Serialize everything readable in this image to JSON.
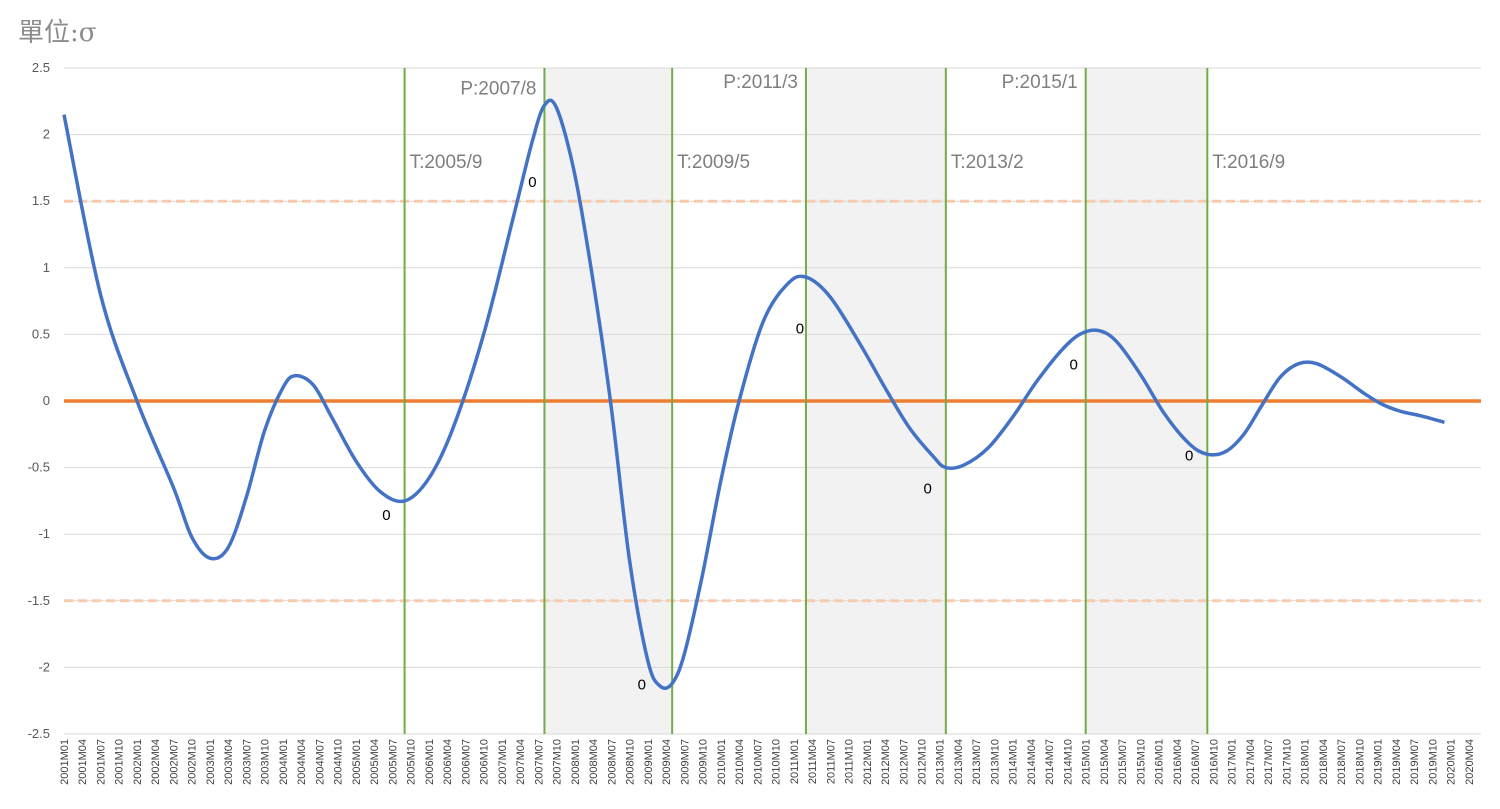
{
  "unit_label": "單位:σ",
  "chart_data": {
    "type": "line",
    "title": "",
    "ylim": [
      -2.5,
      2.5
    ],
    "yticks": [
      "2.5",
      "2",
      "1.5",
      "1",
      "0.5",
      "0",
      "-0.5",
      "-1",
      "-1.5",
      "-2",
      "-2.5"
    ],
    "ytick_values": [
      2.5,
      2,
      1.5,
      1,
      0.5,
      0,
      -0.5,
      -1,
      -1.5,
      -2,
      -2.5
    ],
    "x_start": "2001M01",
    "x_end": "2020M06",
    "xtick_labels": [
      "2001M01",
      "2001M04",
      "2001M07",
      "2001M10",
      "2002M01",
      "2002M04",
      "2002M07",
      "2002M10",
      "2003M01",
      "2003M04",
      "2003M07",
      "2003M10",
      "2004M01",
      "2004M04",
      "2004M07",
      "2004M10",
      "2005M01",
      "2005M04",
      "2005M07",
      "2005M10",
      "2006M01",
      "2006M04",
      "2006M07",
      "2006M10",
      "2007M01",
      "2007M04",
      "2007M07",
      "2007M10",
      "2008M01",
      "2008M04",
      "2008M07",
      "2008M10",
      "2009M01",
      "2009M04",
      "2009M07",
      "2009M10",
      "2010M01",
      "2010M04",
      "2010M07",
      "2010M10",
      "2011M01",
      "2011M04",
      "2011M07",
      "2011M10",
      "2012M01",
      "2012M04",
      "2012M07",
      "2012M10",
      "2013M01",
      "2013M04",
      "2013M07",
      "2013M10",
      "2014M01",
      "2014M04",
      "2014M07",
      "2014M10",
      "2015M01",
      "2015M04",
      "2015M07",
      "2015M10",
      "2016M01",
      "2016M04",
      "2016M07",
      "2016M10",
      "2017M01",
      "2017M04",
      "2017M07",
      "2017M10",
      "2018M01",
      "2018M04",
      "2018M07",
      "2018M10",
      "2019M01",
      "2019M04",
      "2019M07",
      "2019M10",
      "2020M01",
      "2020M04"
    ],
    "series": [
      {
        "color": "#4472c4",
        "points": [
          [
            "2001M01",
            2.15
          ],
          [
            "2001M07",
            0.8
          ],
          [
            "2002M01",
            0.0
          ],
          [
            "2002M07",
            -0.65
          ],
          [
            "2002M10",
            -1.02
          ],
          [
            "2003M01",
            -1.18
          ],
          [
            "2003M04",
            -1.1
          ],
          [
            "2003M07",
            -0.72
          ],
          [
            "2003M10",
            -0.22
          ],
          [
            "2004M01",
            0.1
          ],
          [
            "2004M03",
            0.19
          ],
          [
            "2004M06",
            0.12
          ],
          [
            "2004M09",
            -0.12
          ],
          [
            "2005M01",
            -0.45
          ],
          [
            "2005M05",
            -0.68
          ],
          [
            "2005M09",
            -0.75
          ],
          [
            "2006M01",
            -0.58
          ],
          [
            "2006M05",
            -0.2
          ],
          [
            "2006M10",
            0.5
          ],
          [
            "2007M03",
            1.4
          ],
          [
            "2007M06",
            1.95
          ],
          [
            "2007M08",
            2.22
          ],
          [
            "2007M10",
            2.2
          ],
          [
            "2008M01",
            1.7
          ],
          [
            "2008M04",
            0.9
          ],
          [
            "2008M07",
            -0.05
          ],
          [
            "2008M10",
            -1.2
          ],
          [
            "2009M01",
            -1.95
          ],
          [
            "2009M03",
            -2.14
          ],
          [
            "2009M05",
            -2.12
          ],
          [
            "2009M07",
            -1.9
          ],
          [
            "2009M10",
            -1.3
          ],
          [
            "2010M01",
            -0.6
          ],
          [
            "2010M04",
            0.0
          ],
          [
            "2010M08",
            0.6
          ],
          [
            "2010M12",
            0.88
          ],
          [
            "2011M03",
            0.93
          ],
          [
            "2011M07",
            0.78
          ],
          [
            "2011M12",
            0.42
          ],
          [
            "2012M04",
            0.1
          ],
          [
            "2012M08",
            -0.2
          ],
          [
            "2012M12",
            -0.42
          ],
          [
            "2013M02",
            -0.5
          ],
          [
            "2013M05",
            -0.48
          ],
          [
            "2013M09",
            -0.35
          ],
          [
            "2014M01",
            -0.12
          ],
          [
            "2014M05",
            0.15
          ],
          [
            "2014M09",
            0.38
          ],
          [
            "2014M12",
            0.5
          ],
          [
            "2015M03",
            0.53
          ],
          [
            "2015M06",
            0.45
          ],
          [
            "2015M10",
            0.2
          ],
          [
            "2016M02",
            -0.1
          ],
          [
            "2016M06",
            -0.32
          ],
          [
            "2016M09",
            -0.4
          ],
          [
            "2016M12",
            -0.38
          ],
          [
            "2017M03",
            -0.25
          ],
          [
            "2017M06",
            -0.03
          ],
          [
            "2017M09",
            0.18
          ],
          [
            "2017M12",
            0.28
          ],
          [
            "2018M03",
            0.28
          ],
          [
            "2018M07",
            0.18
          ],
          [
            "2018M11",
            0.05
          ],
          [
            "2019M02",
            -0.03
          ],
          [
            "2019M05",
            -0.08
          ],
          [
            "2019M08",
            -0.11
          ],
          [
            "2019M12",
            -0.16
          ]
        ]
      }
    ],
    "reference_lines": [
      {
        "value": 0,
        "color": "#ed7d31",
        "style": "solid"
      },
      {
        "value": 1.5,
        "color": "#f8cbad",
        "style": "dashed"
      },
      {
        "value": -1.5,
        "color": "#f8cbad",
        "style": "dashed"
      }
    ],
    "shaded_periods": [
      {
        "start": "2007M08",
        "end": "2009M05",
        "color": "#f2f2f2"
      },
      {
        "start": "2011M03",
        "end": "2013M02",
        "color": "#f2f2f2"
      },
      {
        "start": "2015M01",
        "end": "2016M09",
        "color": "#f2f2f2"
      }
    ],
    "turning_points": [
      {
        "date": "2005M09",
        "label": "T:2005/9",
        "label_y": 1.75
      },
      {
        "date": "2007M08",
        "label": "P:2007/8",
        "label_y": 2.3
      },
      {
        "date": "2009M05",
        "label": "T:2009/5",
        "label_y": 1.75
      },
      {
        "date": "2011M03",
        "label": "P:2011/3",
        "label_y": 2.35
      },
      {
        "date": "2013M02",
        "label": "T:2013/2",
        "label_y": 1.75
      },
      {
        "date": "2015M01",
        "label": "P:2015/1",
        "label_y": 2.35
      },
      {
        "date": "2016M09",
        "label": "T:2016/9",
        "label_y": 1.75
      }
    ],
    "vline_color": "#70ad47",
    "point_labels": [
      {
        "date": "2005M07",
        "y": -0.85,
        "text": "0"
      },
      {
        "date": "2007M07",
        "y": 1.65,
        "text": "0"
      },
      {
        "date": "2009M01",
        "y": -2.12,
        "text": "0"
      },
      {
        "date": "2011M03",
        "y": 0.55,
        "text": "0"
      },
      {
        "date": "2012M12",
        "y": -0.65,
        "text": "0"
      },
      {
        "date": "2014M12",
        "y": 0.28,
        "text": "0"
      },
      {
        "date": "2016M07",
        "y": -0.4,
        "text": "0"
      }
    ]
  }
}
